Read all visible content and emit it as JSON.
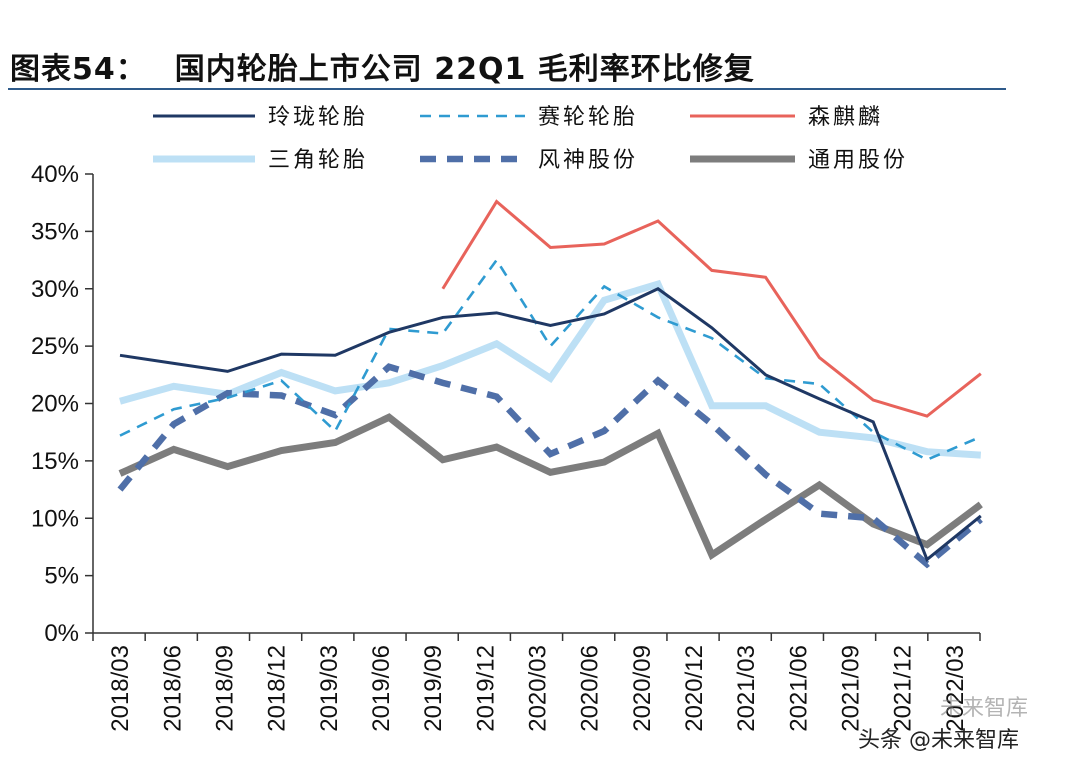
{
  "header": {
    "figure_label": "图表54：",
    "title": "国内轮胎上市公司 22Q1 毛利率环比修复"
  },
  "watermark": {
    "text": "头条 @未来智库",
    "logo_text": "未来智库"
  },
  "chart_data": {
    "type": "line",
    "title": "国内轮胎上市公司 22Q1 毛利率环比修复",
    "xlabel": "",
    "ylabel": "",
    "ylim": [
      0,
      40
    ],
    "y_ticks": [
      "0%",
      "5%",
      "10%",
      "15%",
      "20%",
      "25%",
      "30%",
      "35%",
      "40%"
    ],
    "categories": [
      "2018/03",
      "2018/06",
      "2018/09",
      "2018/12",
      "2019/03",
      "2019/06",
      "2019/09",
      "2019/12",
      "2020/03",
      "2020/06",
      "2020/09",
      "2020/12",
      "2021/03",
      "2021/06",
      "2021/09",
      "2021/12",
      "2022/03"
    ],
    "legend_position": "top",
    "series": [
      {
        "name": "玲珑轮胎",
        "color": "#1f3864",
        "style": "solid-thin",
        "values": [
          24.2,
          23.5,
          22.8,
          24.3,
          24.2,
          26.2,
          27.5,
          27.9,
          26.8,
          27.8,
          30.0,
          26.6,
          22.5,
          20.4,
          18.4,
          6.4,
          10.2
        ]
      },
      {
        "name": "赛轮轮胎",
        "color": "#2f9bd1",
        "style": "dash-thin",
        "values": [
          17.2,
          19.5,
          20.5,
          22.0,
          17.6,
          26.5,
          26.1,
          32.5,
          25.0,
          30.2,
          27.5,
          25.7,
          22.2,
          21.7,
          17.5,
          15.1,
          17.1
        ]
      },
      {
        "name": "森麒麟",
        "color": "#e8635b",
        "style": "solid-thin",
        "values": [
          null,
          null,
          null,
          null,
          null,
          null,
          30.0,
          37.6,
          33.6,
          33.9,
          35.9,
          31.6,
          31.0,
          24.0,
          20.3,
          18.9,
          22.6
        ]
      },
      {
        "name": "三角轮胎",
        "color": "#bde0f5",
        "style": "solid-thick",
        "values": [
          20.2,
          21.5,
          20.8,
          22.7,
          21.1,
          21.8,
          23.3,
          25.2,
          22.2,
          29.0,
          30.4,
          19.8,
          19.8,
          17.5,
          17.0,
          15.8,
          15.5
        ]
      },
      {
        "name": "风神股份",
        "color": "#4f6fa8",
        "style": "dash-thick",
        "values": [
          12.5,
          18.2,
          20.9,
          20.7,
          19.0,
          23.2,
          21.8,
          20.6,
          15.6,
          17.6,
          22.0,
          18.2,
          13.8,
          10.4,
          10.0,
          6.0,
          9.9
        ]
      },
      {
        "name": "通用股份",
        "color": "#7d7d7d",
        "style": "solid-thick",
        "values": [
          13.9,
          16.0,
          14.5,
          15.9,
          16.6,
          18.8,
          15.1,
          16.2,
          14.0,
          14.9,
          17.4,
          6.8,
          9.9,
          12.9,
          9.5,
          7.7,
          11.2
        ]
      }
    ]
  }
}
